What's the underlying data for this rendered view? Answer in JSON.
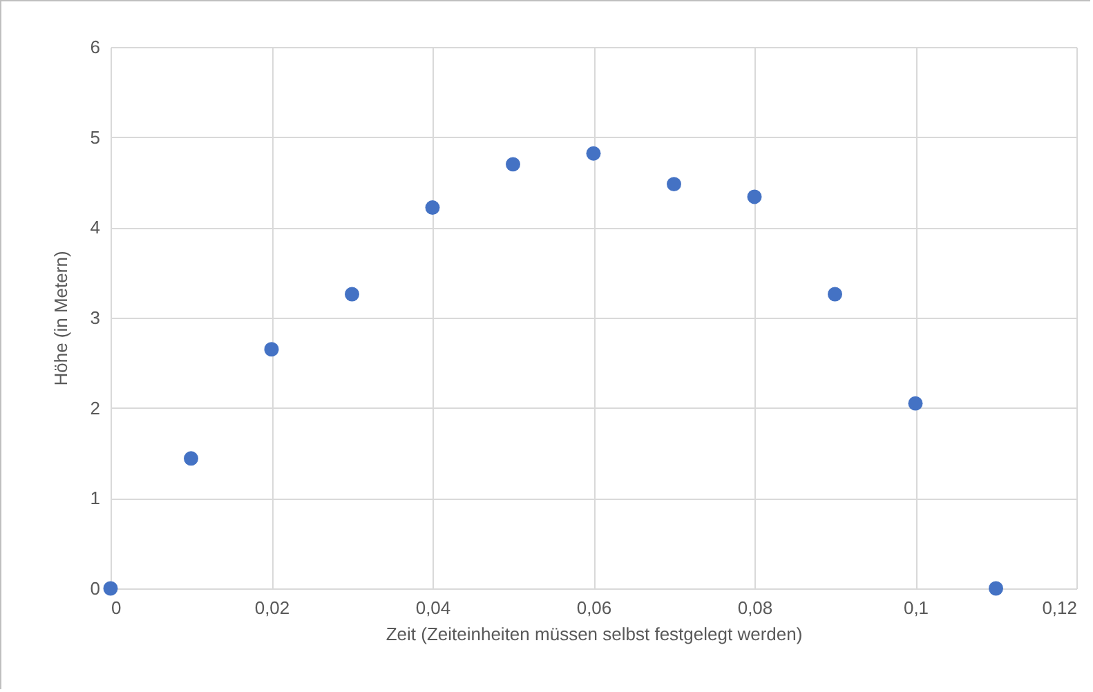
{
  "chart_data": {
    "type": "scatter",
    "xlabel": "Zeit (Zeiteinheiten müssen selbst festgelegt werden)",
    "ylabel": "Höhe (in Metern)",
    "x": [
      0,
      0.01,
      0.02,
      0.03,
      0.04,
      0.05,
      0.06,
      0.07,
      0.08,
      0.09,
      0.1,
      0.11
    ],
    "series": [
      {
        "color": "#4472c4",
        "values": [
          0,
          1.44,
          2.65,
          3.26,
          4.22,
          4.7,
          4.82,
          4.48,
          4.34,
          3.26,
          2.05,
          0
        ]
      }
    ],
    "xlim": [
      0,
      0.12
    ],
    "xticks": [
      0,
      {
        "value": 0.02,
        "label": "0,02"
      },
      {
        "value": 0.04,
        "label": "0,04"
      },
      {
        "value": 0.06,
        "label": "0,06"
      },
      {
        "value": 0.08,
        "label": "0,08"
      },
      {
        "value": 0.1,
        "label": "0,1"
      },
      {
        "value": 0.12,
        "label": "0,12"
      }
    ],
    "ylim": [
      0,
      6
    ],
    "yticks": [
      0,
      1,
      2,
      3,
      4,
      5,
      6
    ],
    "grid": true,
    "marker": "circle",
    "legend": false
  }
}
